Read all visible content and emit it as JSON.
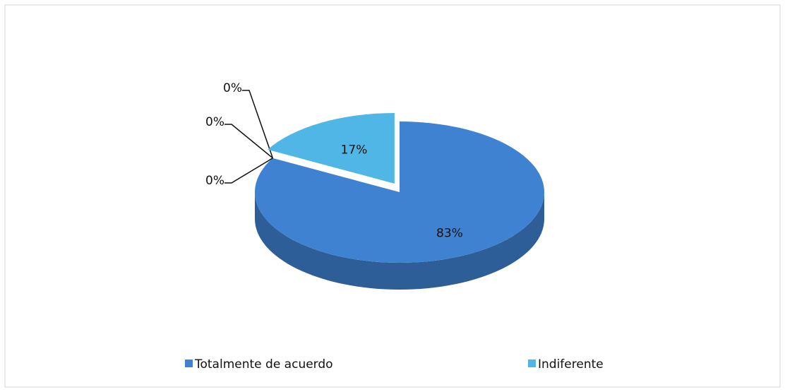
{
  "chart_data": {
    "type": "pie",
    "categories": [
      "Totalmente de acuerdo",
      null,
      null,
      null,
      "Indiferente"
    ],
    "values": [
      83,
      0,
      0,
      0,
      17
    ],
    "value_labels": [
      "83%",
      "0%",
      "0%",
      "0%",
      "17%"
    ],
    "colors": [
      "#3f82d2",
      "#3a76c0",
      "#3a76c0",
      "#3a76c0",
      "#4fb6e6"
    ],
    "legend": "bottom"
  }
}
